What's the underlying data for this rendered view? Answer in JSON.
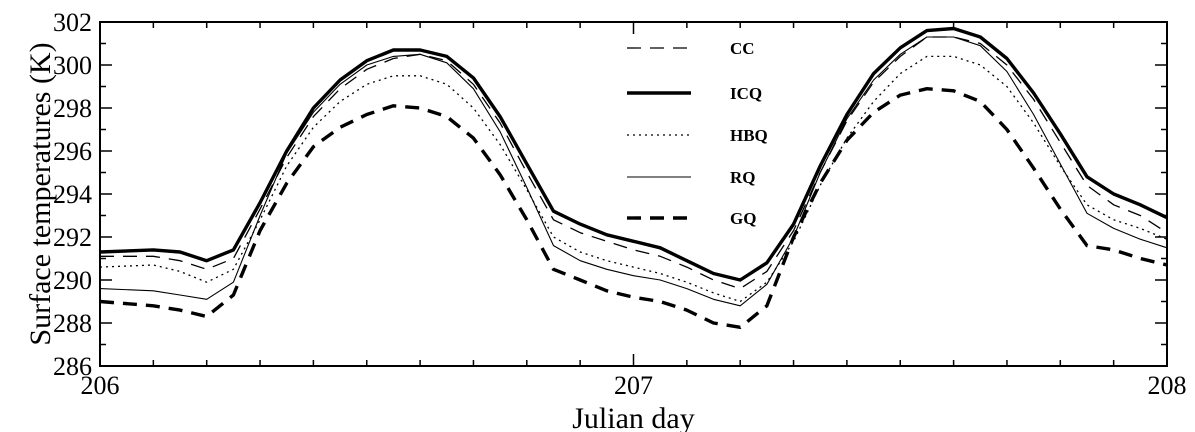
{
  "chart_data": {
    "type": "line",
    "xlabel": "Julian day",
    "ylabel": "Surface temperatures (K)",
    "xlim": [
      206,
      208
    ],
    "ylim": [
      286,
      302
    ],
    "xticks": [
      206,
      207,
      208
    ],
    "yticks": [
      286,
      288,
      290,
      292,
      294,
      296,
      298,
      300,
      302
    ],
    "x_tick_labels": [
      "206",
      "207",
      "208"
    ],
    "y_tick_labels": [
      "286",
      "288",
      "290",
      "292",
      "294",
      "296",
      "298",
      "300",
      "302"
    ],
    "grid": false,
    "legend_position": "top-center",
    "series": [
      {
        "name": "CC",
        "style": "dash-thin",
        "color": "#000000",
        "x": [
          206.0,
          206.1,
          206.15,
          206.2,
          206.25,
          206.3,
          206.35,
          206.4,
          206.45,
          206.5,
          206.55,
          206.6,
          206.65,
          206.7,
          206.75,
          206.8,
          206.85,
          206.9,
          206.95,
          207.0,
          207.05,
          207.1,
          207.15,
          207.2,
          207.25,
          207.3,
          207.35,
          207.4,
          207.45,
          207.5,
          207.55,
          207.6,
          207.65,
          207.7,
          207.75,
          207.8,
          207.85,
          207.9,
          207.95,
          208.0
        ],
        "y": [
          291.1,
          291.1,
          290.9,
          290.5,
          291.0,
          293.3,
          295.7,
          297.6,
          298.9,
          299.8,
          300.3,
          300.5,
          300.2,
          299.1,
          297.3,
          295.0,
          292.8,
          292.2,
          291.8,
          291.4,
          291.1,
          290.6,
          290.0,
          289.6,
          290.4,
          292.3,
          295.0,
          297.4,
          299.2,
          300.4,
          301.3,
          301.3,
          301.0,
          300.0,
          298.4,
          296.4,
          294.4,
          293.5,
          293.0,
          292.2
        ]
      },
      {
        "name": "ICQ",
        "style": "solid-thick",
        "color": "#000000",
        "x": [
          206.0,
          206.1,
          206.15,
          206.2,
          206.25,
          206.3,
          206.35,
          206.4,
          206.45,
          206.5,
          206.55,
          206.6,
          206.65,
          206.7,
          206.75,
          206.8,
          206.85,
          206.9,
          206.95,
          207.0,
          207.05,
          207.1,
          207.15,
          207.2,
          207.25,
          207.3,
          207.35,
          207.4,
          207.45,
          207.5,
          207.55,
          207.6,
          207.65,
          207.7,
          207.75,
          207.8,
          207.85,
          207.9,
          207.95,
          208.0
        ],
        "y": [
          291.3,
          291.4,
          291.3,
          290.9,
          291.4,
          293.6,
          296.0,
          298.0,
          299.3,
          300.2,
          300.7,
          300.7,
          300.4,
          299.4,
          297.6,
          295.4,
          293.2,
          292.6,
          292.1,
          291.8,
          291.5,
          290.9,
          290.3,
          290.0,
          290.8,
          292.6,
          295.3,
          297.7,
          299.6,
          300.8,
          301.6,
          301.7,
          301.3,
          300.3,
          298.7,
          296.8,
          294.8,
          294.0,
          293.5,
          292.9
        ]
      },
      {
        "name": "HBQ",
        "style": "dotted",
        "color": "#000000",
        "x": [
          206.0,
          206.1,
          206.15,
          206.2,
          206.25,
          206.3,
          206.35,
          206.4,
          206.45,
          206.5,
          206.55,
          206.6,
          206.65,
          206.7,
          206.75,
          206.8,
          206.85,
          206.9,
          206.95,
          207.0,
          207.05,
          207.1,
          207.15,
          207.2,
          207.25,
          207.3,
          207.35,
          207.4,
          207.45,
          207.5,
          207.55,
          207.6,
          207.65,
          207.7,
          207.75,
          207.8,
          207.85,
          207.9,
          207.95,
          208.0
        ],
        "y": [
          290.6,
          290.7,
          290.4,
          289.9,
          290.5,
          292.8,
          295.3,
          297.1,
          298.3,
          299.1,
          299.5,
          299.5,
          299.1,
          298.0,
          296.3,
          294.2,
          292.0,
          291.3,
          290.9,
          290.6,
          290.3,
          289.9,
          289.4,
          289.0,
          289.9,
          291.8,
          294.4,
          296.6,
          298.3,
          299.6,
          300.4,
          300.4,
          300.0,
          299.0,
          297.3,
          295.3,
          293.5,
          292.8,
          292.4,
          291.9
        ]
      },
      {
        "name": "RQ",
        "style": "solid-thin",
        "color": "#000000",
        "x": [
          206.0,
          206.1,
          206.15,
          206.2,
          206.25,
          206.3,
          206.35,
          206.4,
          206.45,
          206.5,
          206.55,
          206.6,
          206.65,
          206.7,
          206.75,
          206.8,
          206.85,
          206.9,
          206.95,
          207.0,
          207.05,
          207.1,
          207.15,
          207.2,
          207.25,
          207.3,
          207.35,
          207.4,
          207.45,
          207.5,
          207.55,
          207.6,
          207.65,
          207.7,
          207.75,
          207.8,
          207.85,
          207.9,
          207.95,
          208.0
        ],
        "y": [
          289.6,
          289.5,
          289.3,
          289.1,
          289.9,
          293.0,
          295.9,
          297.8,
          299.1,
          300.0,
          300.4,
          300.5,
          300.1,
          298.9,
          296.9,
          294.3,
          291.6,
          290.9,
          290.5,
          290.2,
          290.0,
          289.6,
          289.1,
          288.8,
          289.8,
          292.0,
          295.0,
          297.5,
          299.3,
          300.5,
          301.3,
          301.3,
          300.9,
          299.7,
          297.7,
          295.4,
          293.1,
          292.4,
          291.9,
          291.5
        ]
      },
      {
        "name": "GQ",
        "style": "dash-thick",
        "color": "#000000",
        "x": [
          206.0,
          206.1,
          206.15,
          206.2,
          206.25,
          206.3,
          206.35,
          206.4,
          206.45,
          206.5,
          206.55,
          206.6,
          206.65,
          206.7,
          206.75,
          206.8,
          206.85,
          206.9,
          206.95,
          207.0,
          207.05,
          207.1,
          207.15,
          207.2,
          207.25,
          207.3,
          207.35,
          207.4,
          207.45,
          207.5,
          207.55,
          207.6,
          207.65,
          207.7,
          207.75,
          207.8,
          207.85,
          207.9,
          207.95,
          208.0
        ],
        "y": [
          289.0,
          288.8,
          288.6,
          288.3,
          289.3,
          292.3,
          294.5,
          296.2,
          297.1,
          297.7,
          298.1,
          298.0,
          297.6,
          296.6,
          294.9,
          292.8,
          290.5,
          290.0,
          289.5,
          289.2,
          289.0,
          288.6,
          288.0,
          287.8,
          288.8,
          292.0,
          294.5,
          296.5,
          297.8,
          298.6,
          298.9,
          298.8,
          298.3,
          297.0,
          295.2,
          293.3,
          291.6,
          291.4,
          291.0,
          290.7
        ]
      }
    ]
  }
}
